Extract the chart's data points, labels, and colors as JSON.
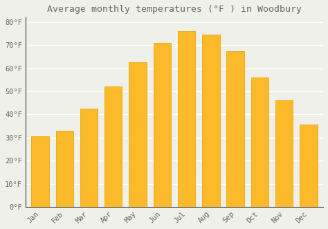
{
  "title": "Average monthly temperatures (°F ) in Woodbury",
  "months": [
    "Jan",
    "Feb",
    "Mar",
    "Apr",
    "May",
    "Jun",
    "Jul",
    "Aug",
    "Sep",
    "Oct",
    "Nov",
    "Dec"
  ],
  "values": [
    30.5,
    33.0,
    42.5,
    52.0,
    62.5,
    71.0,
    76.0,
    74.5,
    67.5,
    56.0,
    46.0,
    35.5
  ],
  "bar_color": "#FCBA2A",
  "bar_edge_color": "#E8A800",
  "background_color": "#F0F0EA",
  "grid_color": "#FFFFFF",
  "text_color": "#666666",
  "spine_color": "#333333",
  "ylim": [
    0,
    82
  ],
  "yticks": [
    0,
    10,
    20,
    30,
    40,
    50,
    60,
    70,
    80
  ],
  "ylabel_suffix": "°F",
  "title_fontsize": 9.5,
  "tick_fontsize": 7.5,
  "bar_width": 0.72
}
